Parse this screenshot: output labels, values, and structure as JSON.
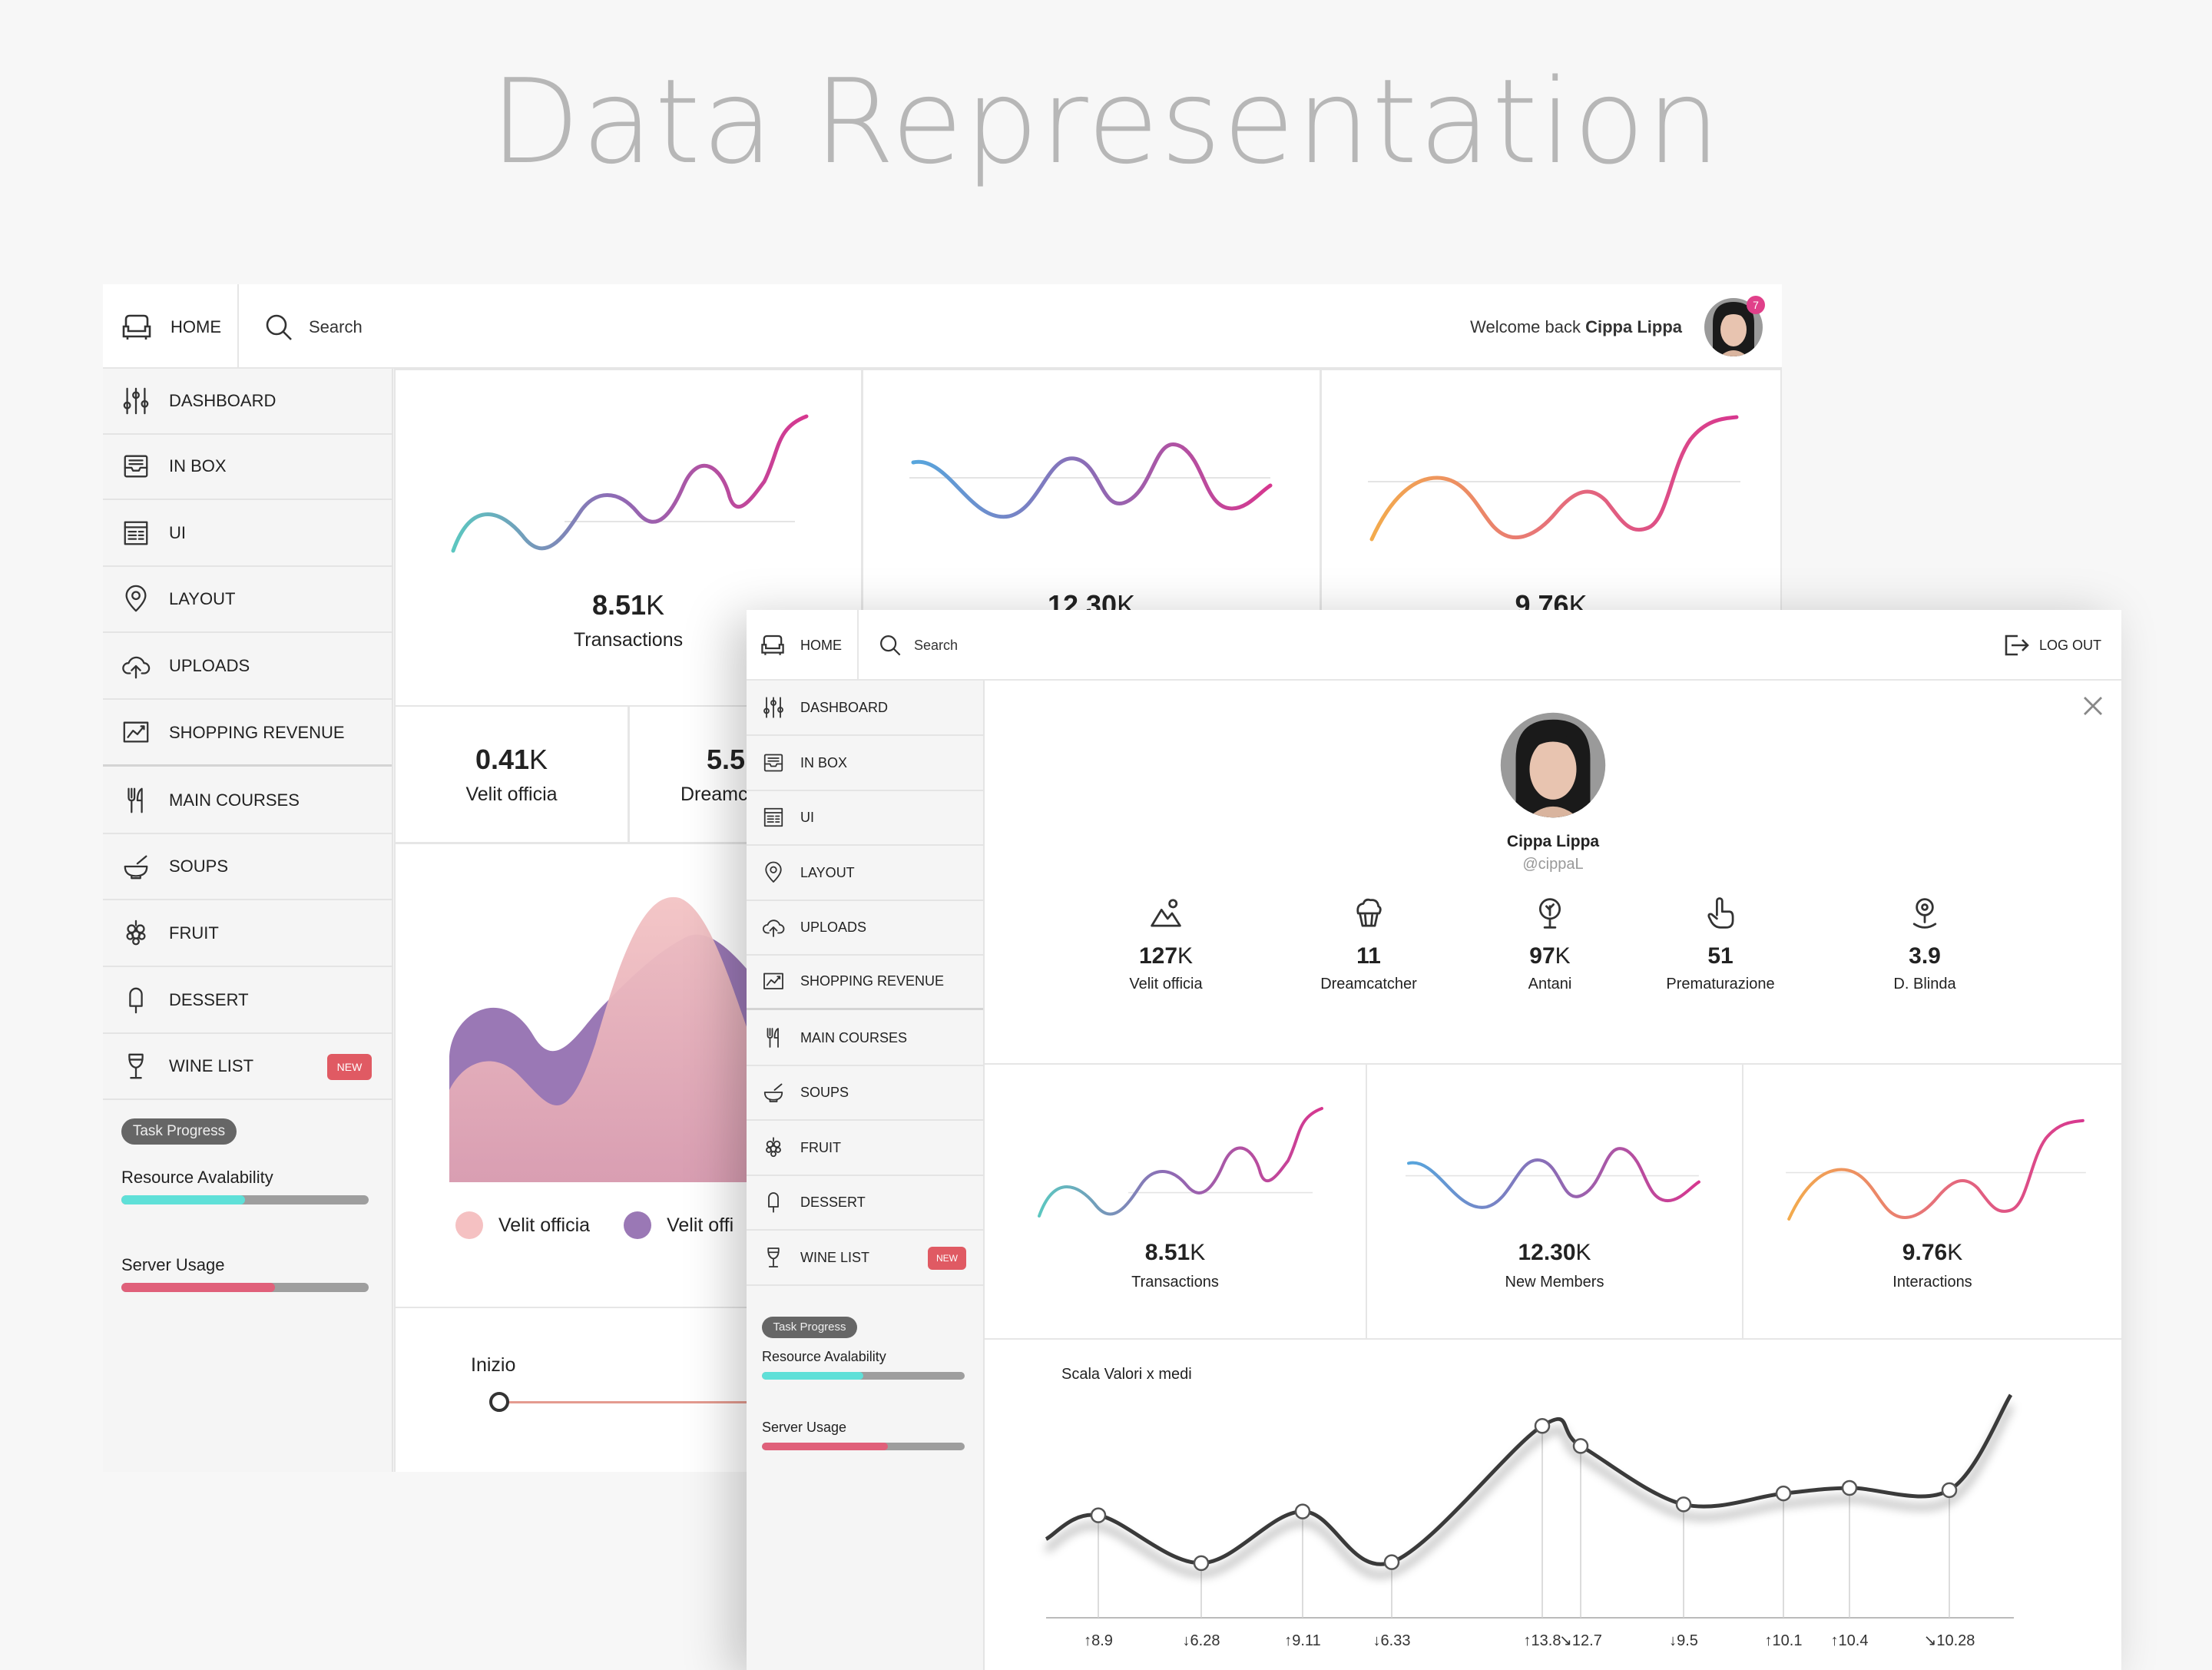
{
  "page_title": "Data Representation",
  "colors": {
    "teal": "#5cc7c0",
    "purple": "#8d6bb5",
    "magenta": "#d7378f",
    "blue": "#57a6dd",
    "orange": "#f3ab4d",
    "bar_teal": "#5fe0d8",
    "bar_red": "#e0607a",
    "badge": "#e05a63"
  },
  "nav": {
    "home": "HOME",
    "search": "Search",
    "items": [
      {
        "label": "DASHBOARD",
        "icon": "sliders-icon"
      },
      {
        "label": "IN BOX",
        "icon": "inbox-icon"
      },
      {
        "label": "UI",
        "icon": "ui-layout-icon"
      },
      {
        "label": "LAYOUT",
        "icon": "map-pin-icon"
      },
      {
        "label": "UPLOADS",
        "icon": "cloud-upload-icon"
      },
      {
        "label": "SHOPPING REVENUE",
        "icon": "chart-icon"
      },
      {
        "label": "MAIN COURSES",
        "icon": "fork-knife-icon"
      },
      {
        "label": "SOUPS",
        "icon": "soup-bowl-icon"
      },
      {
        "label": "FRUIT",
        "icon": "grapes-icon"
      },
      {
        "label": "DESSERT",
        "icon": "popsicle-icon"
      },
      {
        "label": "WINE LIST",
        "icon": "wine-glass-icon"
      }
    ],
    "new_badge": "NEW",
    "task_progress": "Task Progress",
    "resource": "Resource Avalability",
    "server": "Server Usage",
    "resource_value": 0.5,
    "server_value": 0.62
  },
  "win1": {
    "welcome": "Welcome back",
    "user": "Cippa Lippa",
    "notif_count": "7",
    "stats": [
      {
        "value": "8.51",
        "unit": "K",
        "label": "Transactions"
      },
      {
        "value": "12.30",
        "unit": "K",
        "label": ""
      },
      {
        "value": "9.76",
        "unit": "K",
        "label": ""
      }
    ],
    "small_stats": [
      {
        "value": "0.41",
        "unit": "K",
        "label": "Velit officia"
      },
      {
        "value": "5.5",
        "unit": "",
        "label": "Dreamc"
      }
    ],
    "legend": [
      "Velit officia",
      "Velit offi"
    ],
    "timeline_label": "Inizio"
  },
  "win2": {
    "logout": "LOG OUT",
    "profile_name": "Cippa Lippa",
    "profile_handle": "@cippaL",
    "profile_stats": [
      {
        "value": "127",
        "unit": "K",
        "label": "Velit officia",
        "icon": "mountain-image-icon"
      },
      {
        "value": "11",
        "unit": "",
        "label": "Dreamcatcher",
        "icon": "cupcake-icon"
      },
      {
        "value": "97",
        "unit": "K",
        "label": "Antani",
        "icon": "location-tree-icon"
      },
      {
        "value": "51",
        "unit": "",
        "label": "Prematurazione",
        "icon": "hand-pointer-icon"
      },
      {
        "value": "3.9",
        "unit": "",
        "label": "D. Blinda",
        "icon": "map-marker-icon"
      }
    ],
    "stats": [
      {
        "value": "8.51",
        "unit": "K",
        "label": "Transactions"
      },
      {
        "value": "12.30",
        "unit": "K",
        "label": "New Members"
      },
      {
        "value": "9.76",
        "unit": "K",
        "label": "Interactions"
      }
    ],
    "line_title": "Scala Valori x medi"
  },
  "chart_data": [
    {
      "type": "line",
      "title": "Scala Valori x medi",
      "x": [
        "↑8.9",
        "↓6.28",
        "↑9.11",
        "↓6.33",
        "↑13.8",
        "↘12.7",
        "↓9.5",
        "↑10.1",
        "↑10.4",
        "↘10.28"
      ],
      "series": [
        {
          "values": [
            8.9,
            6.28,
            9.11,
            6.33,
            13.8,
            12.7,
            9.5,
            10.1,
            10.4,
            10.28
          ]
        }
      ],
      "ylim": [
        4,
        16
      ],
      "grid": false
    },
    {
      "type": "area",
      "legend": [
        "Velit officia",
        "Velit offi"
      ],
      "legend_position": "bottom"
    }
  ]
}
